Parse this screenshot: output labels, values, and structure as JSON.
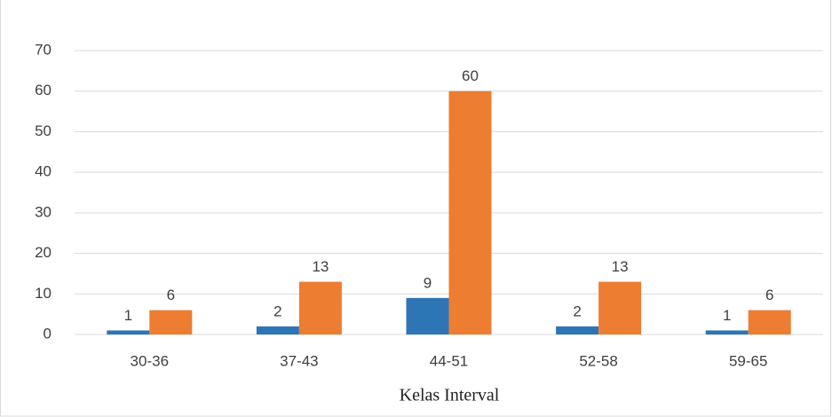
{
  "chart_data": {
    "type": "bar",
    "x_label": "Kelas Interval",
    "categories": [
      "30-36",
      "37-43",
      "44-51",
      "52-58",
      "59-65"
    ],
    "series": [
      {
        "color": "#2e75b6",
        "values": [
          1,
          2,
          9,
          2,
          1
        ]
      },
      {
        "color": "#ed7d31",
        "values": [
          6,
          13,
          60,
          13,
          6
        ]
      }
    ],
    "ylim": [
      0,
      70
    ],
    "yticks": [
      0,
      10,
      20,
      30,
      40,
      50,
      60,
      70
    ],
    "grid": true
  }
}
